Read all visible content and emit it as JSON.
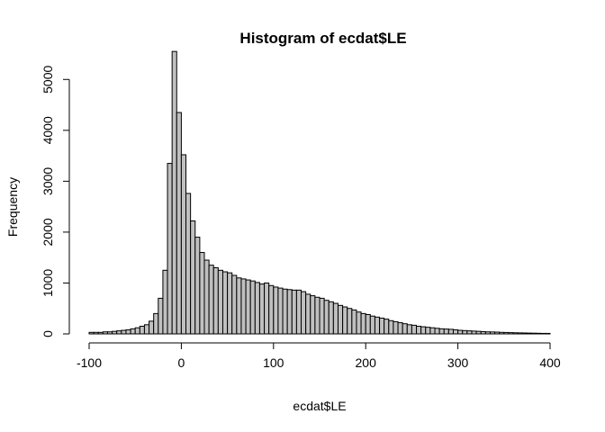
{
  "chart_data": {
    "type": "bar",
    "title": "Histogram of ecdat$LE",
    "xlabel": "ecdat$LE",
    "ylabel": "Frequency",
    "xlim": [
      -100,
      400
    ],
    "ylim": [
      0,
      5500
    ],
    "xticks": [
      -100,
      0,
      100,
      200,
      300,
      400
    ],
    "yticks": [
      0,
      1000,
      2000,
      3000,
      4000,
      5000
    ],
    "bin_start": -100,
    "bin_width": 5,
    "values": [
      30,
      30,
      30,
      40,
      40,
      50,
      60,
      70,
      80,
      100,
      120,
      150,
      180,
      250,
      400,
      700,
      1250,
      3350,
      5550,
      4350,
      3520,
      2760,
      2220,
      1900,
      1600,
      1450,
      1350,
      1300,
      1250,
      1220,
      1200,
      1150,
      1100,
      1080,
      1060,
      1040,
      1010,
      980,
      1000,
      950,
      920,
      900,
      880,
      870,
      860,
      860,
      830,
      780,
      750,
      720,
      700,
      660,
      630,
      600,
      560,
      530,
      500,
      470,
      430,
      400,
      380,
      350,
      330,
      310,
      290,
      260,
      240,
      220,
      200,
      180,
      170,
      150,
      140,
      130,
      120,
      110,
      100,
      95,
      90,
      80,
      70,
      65,
      60,
      55,
      50,
      45,
      40,
      38,
      35,
      30,
      28,
      25,
      22,
      20,
      18,
      16,
      14,
      12,
      10,
      10
    ]
  },
  "colors": {
    "bar_fill": "#c0c0c0",
    "stroke": "#000000"
  }
}
